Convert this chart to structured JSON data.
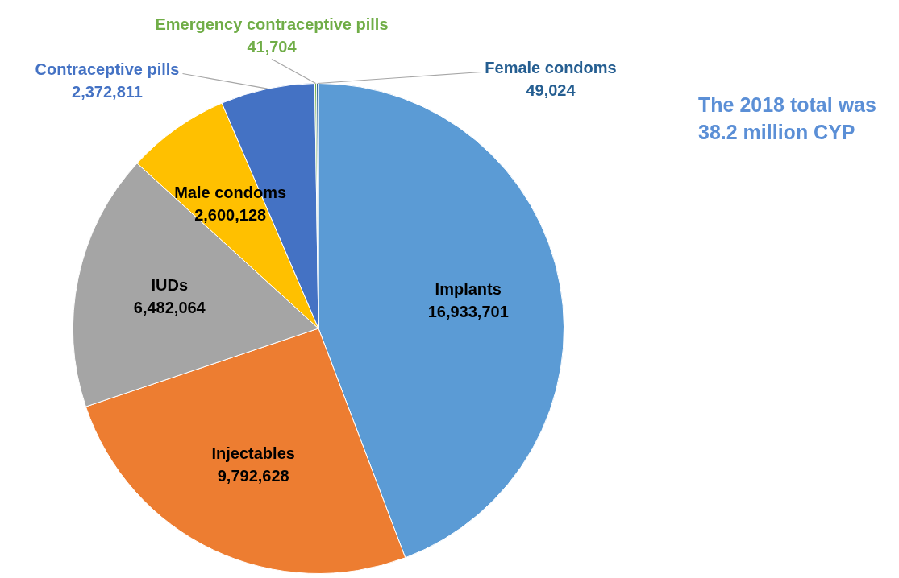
{
  "chart_data": {
    "type": "pie",
    "categories": [
      "Implants",
      "Injectables",
      "IUDs",
      "Male condoms",
      "Contraceptive pills",
      "Emergency contraceptive pills",
      "Female condoms"
    ],
    "values": [
      16933701,
      9792628,
      6482064,
      2600128,
      2372811,
      41704,
      49024
    ],
    "colors": [
      "#5b9bd5",
      "#ed7d31",
      "#a5a5a5",
      "#ffc000",
      "#4472c4",
      "#70ad47",
      "#255e91"
    ],
    "value_labels": [
      "16,933,701",
      "9,792,628",
      "6,482,064",
      "2,600,128",
      "2,372,811",
      "41,704",
      "49,024"
    ],
    "legend": false,
    "annotations": [
      "The 2018 total was 38.2 million CYP"
    ]
  }
}
